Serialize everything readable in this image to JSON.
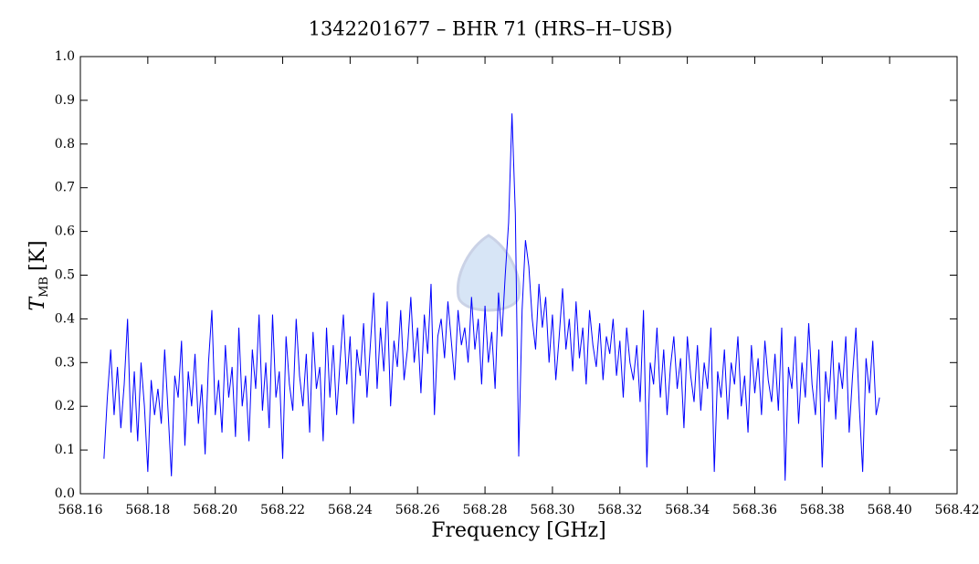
{
  "chart_data": {
    "type": "line",
    "title": "1342201677 – BHR 71 (HRS–H–USB)",
    "xlabel": "Frequency [GHz]",
    "ylabel": {
      "symbol": "T",
      "subscript": "MB",
      "unit": "[K]"
    },
    "xlim": [
      568.16,
      568.42
    ],
    "ylim": [
      0,
      1
    ],
    "xticks": [
      568.16,
      568.18,
      {
        "value": 568.2,
        "label": "568.20"
      },
      568.22,
      568.24,
      568.26,
      568.28,
      {
        "value": 568.3,
        "label": "568.30"
      },
      568.32,
      568.34,
      568.36,
      568.38,
      {
        "value": 568.4,
        "label": "568.40"
      },
      568.42
    ],
    "yticks": [
      {
        "value": 0,
        "label": "0.0"
      },
      0.1,
      0.2,
      0.3,
      0.4,
      0.5,
      0.6,
      0.7,
      0.8,
      0.9,
      {
        "value": 1,
        "label": "1.0"
      }
    ],
    "x": [
      568.167,
      568.168,
      568.169,
      568.17,
      568.171,
      568.172,
      568.173,
      568.174,
      568.175,
      568.176,
      568.177,
      568.178,
      568.179,
      568.18,
      568.181,
      568.182,
      568.183,
      568.184,
      568.185,
      568.186,
      568.187,
      568.188,
      568.189,
      568.19,
      568.191,
      568.192,
      568.193,
      568.194,
      568.195,
      568.196,
      568.197,
      568.198,
      568.199,
      568.2,
      568.201,
      568.202,
      568.203,
      568.204,
      568.205,
      568.206,
      568.207,
      568.208,
      568.209,
      568.21,
      568.211,
      568.212,
      568.213,
      568.214,
      568.215,
      568.216,
      568.217,
      568.218,
      568.219,
      568.22,
      568.221,
      568.222,
      568.223,
      568.224,
      568.225,
      568.226,
      568.227,
      568.228,
      568.229,
      568.23,
      568.231,
      568.232,
      568.233,
      568.234,
      568.235,
      568.236,
      568.237,
      568.238,
      568.239,
      568.24,
      568.241,
      568.242,
      568.243,
      568.244,
      568.245,
      568.246,
      568.247,
      568.248,
      568.249,
      568.25,
      568.251,
      568.252,
      568.253,
      568.254,
      568.255,
      568.256,
      568.257,
      568.258,
      568.259,
      568.26,
      568.261,
      568.262,
      568.263,
      568.264,
      568.265,
      568.266,
      568.267,
      568.268,
      568.269,
      568.27,
      568.271,
      568.272,
      568.273,
      568.274,
      568.275,
      568.276,
      568.277,
      568.278,
      568.279,
      568.28,
      568.281,
      568.282,
      568.283,
      568.284,
      568.285,
      568.286,
      568.287,
      568.288,
      568.289,
      568.29,
      568.291,
      568.292,
      568.293,
      568.294,
      568.295,
      568.296,
      568.297,
      568.298,
      568.299,
      568.3,
      568.301,
      568.302,
      568.303,
      568.304,
      568.305,
      568.306,
      568.307,
      568.308,
      568.309,
      568.31,
      568.311,
      568.312,
      568.313,
      568.314,
      568.315,
      568.316,
      568.317,
      568.318,
      568.319,
      568.32,
      568.321,
      568.322,
      568.323,
      568.324,
      568.325,
      568.326,
      568.327,
      568.328,
      568.329,
      568.33,
      568.331,
      568.332,
      568.333,
      568.334,
      568.335,
      568.336,
      568.337,
      568.338,
      568.339,
      568.34,
      568.341,
      568.342,
      568.343,
      568.344,
      568.345,
      568.346,
      568.347,
      568.348,
      568.349,
      568.35,
      568.351,
      568.352,
      568.353,
      568.354,
      568.355,
      568.356,
      568.357,
      568.358,
      568.359,
      568.36,
      568.361,
      568.362,
      568.363,
      568.364,
      568.365,
      568.366,
      568.367,
      568.368,
      568.369,
      568.37,
      568.371,
      568.372,
      568.373,
      568.374,
      568.375,
      568.376,
      568.377,
      568.378,
      568.379,
      568.38,
      568.381,
      568.382,
      568.383,
      568.384,
      568.385,
      568.386,
      568.387,
      568.388,
      568.389,
      568.39,
      568.391,
      568.392,
      568.393,
      568.394,
      568.395,
      568.396,
      568.397
    ],
    "series": [
      {
        "color": "#0000ff",
        "values": [
          0.08,
          0.22,
          0.33,
          0.18,
          0.29,
          0.15,
          0.25,
          0.4,
          0.14,
          0.28,
          0.12,
          0.3,
          0.2,
          0.05,
          0.26,
          0.18,
          0.24,
          0.16,
          0.33,
          0.19,
          0.04,
          0.27,
          0.22,
          0.35,
          0.11,
          0.28,
          0.2,
          0.32,
          0.16,
          0.25,
          0.09,
          0.3,
          0.42,
          0.18,
          0.26,
          0.14,
          0.34,
          0.22,
          0.29,
          0.13,
          0.38,
          0.2,
          0.27,
          0.12,
          0.33,
          0.24,
          0.41,
          0.19,
          0.3,
          0.15,
          0.41,
          0.22,
          0.28,
          0.08,
          0.36,
          0.25,
          0.19,
          0.4,
          0.27,
          0.2,
          0.32,
          0.14,
          0.37,
          0.24,
          0.29,
          0.12,
          0.38,
          0.22,
          0.34,
          0.18,
          0.3,
          0.41,
          0.25,
          0.36,
          0.16,
          0.33,
          0.27,
          0.39,
          0.22,
          0.34,
          0.46,
          0.24,
          0.38,
          0.28,
          0.44,
          0.2,
          0.35,
          0.29,
          0.42,
          0.26,
          0.33,
          0.45,
          0.3,
          0.38,
          0.23,
          0.41,
          0.32,
          0.48,
          0.18,
          0.36,
          0.4,
          0.31,
          0.44,
          0.35,
          0.26,
          0.42,
          0.34,
          0.38,
          0.3,
          0.45,
          0.33,
          0.4,
          0.25,
          0.43,
          0.3,
          0.37,
          0.24,
          0.46,
          0.36,
          0.5,
          0.62,
          0.87,
          0.64,
          0.085,
          0.42,
          0.58,
          0.52,
          0.4,
          0.33,
          0.48,
          0.38,
          0.45,
          0.3,
          0.41,
          0.26,
          0.36,
          0.47,
          0.33,
          0.4,
          0.28,
          0.44,
          0.31,
          0.38,
          0.25,
          0.42,
          0.34,
          0.29,
          0.39,
          0.26,
          0.36,
          0.32,
          0.4,
          0.27,
          0.35,
          0.22,
          0.38,
          0.3,
          0.26,
          0.34,
          0.21,
          0.42,
          0.06,
          0.3,
          0.25,
          0.38,
          0.22,
          0.33,
          0.18,
          0.29,
          0.36,
          0.24,
          0.31,
          0.15,
          0.36,
          0.27,
          0.21,
          0.34,
          0.19,
          0.3,
          0.24,
          0.38,
          0.05,
          0.28,
          0.22,
          0.33,
          0.17,
          0.3,
          0.25,
          0.36,
          0.2,
          0.27,
          0.14,
          0.34,
          0.23,
          0.31,
          0.18,
          0.35,
          0.26,
          0.21,
          0.32,
          0.19,
          0.38,
          0.03,
          0.29,
          0.24,
          0.36,
          0.16,
          0.3,
          0.22,
          0.39,
          0.25,
          0.18,
          0.33,
          0.06,
          0.28,
          0.21,
          0.35,
          0.17,
          0.3,
          0.24,
          0.36,
          0.14,
          0.27,
          0.38,
          0.2,
          0.05,
          0.31,
          0.23,
          0.35,
          0.18,
          0.22
        ]
      }
    ]
  }
}
